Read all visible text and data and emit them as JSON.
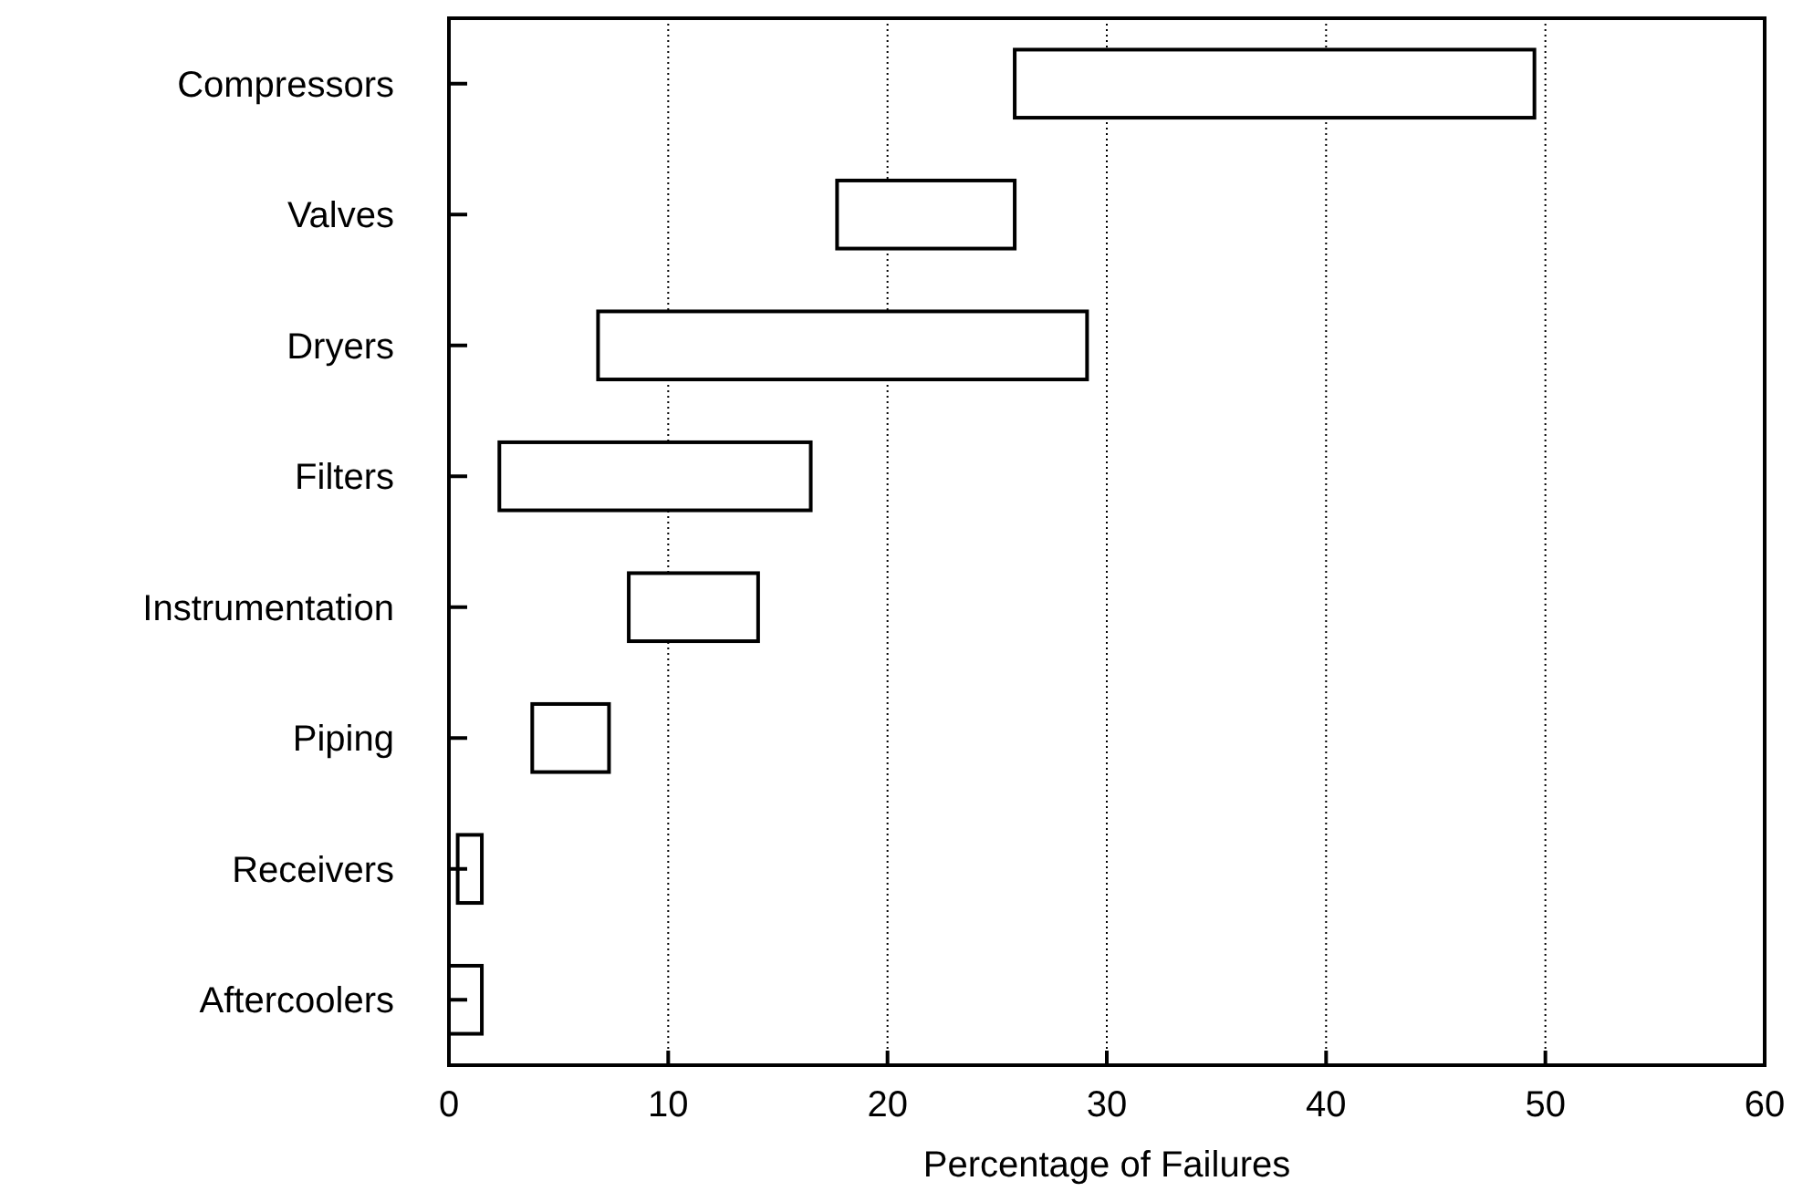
{
  "chart_data": {
    "type": "bar",
    "orientation": "horizontal",
    "xlabel": "Percentage of Failures",
    "categories": [
      "Compressors",
      "Valves",
      "Dryers",
      "Filters",
      "Instrumentation",
      "Piping",
      "Receivers",
      "Aftercoolers"
    ],
    "base": [
      25.8,
      17.7,
      6.8,
      2.3,
      8.2,
      3.8,
      0.4,
      0
    ],
    "values": [
      23.7,
      8.1,
      22.3,
      14.2,
      5.9,
      3.5,
      1.1,
      1.5
    ],
    "color": "#ffffff",
    "xlim": [
      0,
      60
    ],
    "xticks": [
      0,
      10,
      20,
      30,
      40,
      50,
      60
    ],
    "grid": "x"
  }
}
